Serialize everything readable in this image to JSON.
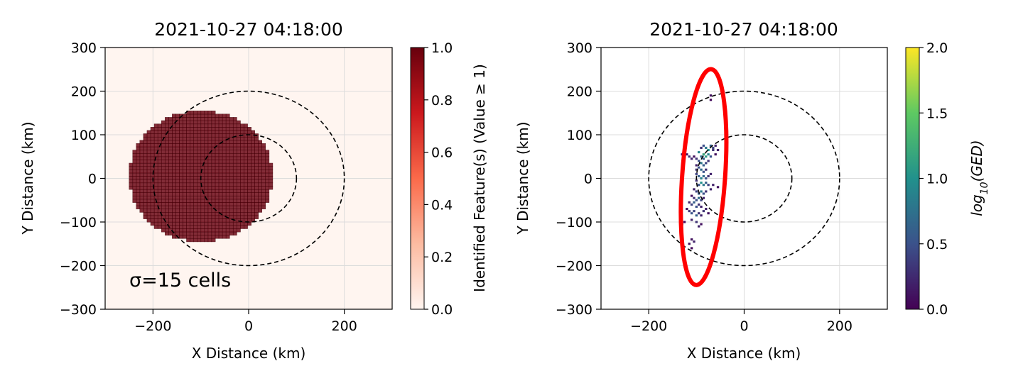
{
  "chart_data": [
    {
      "type": "heatmap",
      "title": "2021-10-27 04:18:00",
      "xlabel": "X Distance (km)",
      "ylabel": "Y Distance (km)",
      "xlim": [
        -300,
        300
      ],
      "ylim": [
        -300,
        300
      ],
      "xticks": [
        -200,
        0,
        200
      ],
      "yticks": [
        -300,
        -200,
        -100,
        0,
        100,
        200,
        300
      ],
      "grid": true,
      "annotation": "σ=15 cells",
      "feature_region": {
        "description": "Identified feature: disc of value 1.0",
        "center": [
          -100,
          5
        ],
        "radius": 150
      },
      "rings": [
        {
          "center": [
            0,
            0
          ],
          "radius": 100,
          "style": "dashed"
        },
        {
          "center": [
            0,
            0
          ],
          "radius": 200,
          "style": "dashed"
        }
      ],
      "colorbar": {
        "label": "Identified Feature(s) (Value ≥ 1)",
        "range": [
          0,
          1
        ],
        "ticks": [
          0.0,
          0.2,
          0.4,
          0.6,
          0.8,
          1.0
        ],
        "colormap": "Reds",
        "colors": [
          "#fff5f0",
          "#fcbba1",
          "#fb6a4a",
          "#cb181d",
          "#67000d"
        ]
      }
    },
    {
      "type": "heatmap",
      "title": "2021-10-27 04:18:00",
      "xlabel": "X Distance (km)",
      "ylabel": "Y Distance (km)",
      "xlim": [
        -300,
        300
      ],
      "ylim": [
        -300,
        300
      ],
      "xticks": [
        -200,
        0,
        200
      ],
      "yticks": [
        -300,
        -200,
        -100,
        0,
        100,
        200,
        300
      ],
      "grid": true,
      "rings": [
        {
          "center": [
            0,
            0
          ],
          "radius": 100,
          "style": "dashed"
        },
        {
          "center": [
            0,
            0
          ],
          "radius": 200,
          "style": "dashed"
        }
      ],
      "highlight_ellipse": {
        "center": [
          -85,
          3
        ],
        "semi_axes": [
          45,
          248
        ],
        "tilt_deg": 4,
        "color": "#ff0000"
      },
      "cells": [
        [
          -70,
          190,
          0.1
        ],
        [
          -70,
          180,
          0.05
        ],
        [
          -90,
          70,
          0.3
        ],
        [
          -85,
          75,
          0.5
        ],
        [
          -80,
          70,
          0.8
        ],
        [
          -75,
          65,
          1.0
        ],
        [
          -70,
          75,
          0.6
        ],
        [
          -65,
          70,
          0.4
        ],
        [
          -60,
          75,
          0.2
        ],
        [
          -65,
          65,
          0.3
        ],
        [
          -55,
          65,
          0.2
        ],
        [
          -60,
          55,
          0.1
        ],
        [
          -130,
          55,
          0.1
        ],
        [
          -125,
          50,
          0.2
        ],
        [
          -120,
          55,
          0.1
        ],
        [
          -115,
          50,
          0.3
        ],
        [
          -110,
          45,
          0.2
        ],
        [
          -105,
          50,
          0.1
        ],
        [
          -95,
          60,
          0.9
        ],
        [
          -85,
          55,
          1.2
        ],
        [
          -80,
          50,
          1.1
        ],
        [
          -75,
          55,
          0.9
        ],
        [
          -70,
          50,
          0.5
        ],
        [
          -90,
          50,
          0.7
        ],
        [
          -85,
          45,
          0.6
        ],
        [
          -100,
          45,
          0.3
        ],
        [
          -95,
          40,
          0.5
        ],
        [
          -90,
          35,
          0.8
        ],
        [
          -85,
          30,
          0.6
        ],
        [
          -80,
          35,
          0.4
        ],
        [
          -75,
          40,
          0.3
        ],
        [
          -100,
          30,
          0.2
        ],
        [
          -100,
          20,
          0.3
        ],
        [
          -95,
          25,
          0.5
        ],
        [
          -90,
          20,
          0.7
        ],
        [
          -85,
          15,
          0.5
        ],
        [
          -80,
          20,
          0.3
        ],
        [
          -100,
          10,
          0.4
        ],
        [
          -95,
          5,
          0.6
        ],
        [
          -90,
          0,
          0.9
        ],
        [
          -85,
          5,
          0.7
        ],
        [
          -80,
          0,
          0.5
        ],
        [
          -75,
          5,
          0.3
        ],
        [
          -70,
          10,
          0.2
        ],
        [
          -100,
          -5,
          0.3
        ],
        [
          -95,
          -15,
          0.5
        ],
        [
          -90,
          -10,
          1.0
        ],
        [
          -85,
          -15,
          0.8
        ],
        [
          -80,
          -10,
          0.6
        ],
        [
          -75,
          -15,
          0.4
        ],
        [
          -65,
          -15,
          0.2
        ],
        [
          -55,
          -20,
          0.1
        ],
        [
          -105,
          -25,
          0.2
        ],
        [
          -100,
          -30,
          0.4
        ],
        [
          -95,
          -35,
          0.6
        ],
        [
          -90,
          -30,
          0.8
        ],
        [
          -85,
          -35,
          0.5
        ],
        [
          -80,
          -30,
          0.3
        ],
        [
          -70,
          -25,
          0.2
        ],
        [
          -110,
          -40,
          0.1
        ],
        [
          -105,
          -45,
          0.3
        ],
        [
          -100,
          -50,
          0.5
        ],
        [
          -95,
          -45,
          0.7
        ],
        [
          -90,
          -50,
          0.4
        ],
        [
          -85,
          -45,
          0.2
        ],
        [
          -115,
          -55,
          0.2
        ],
        [
          -110,
          -60,
          0.4
        ],
        [
          -105,
          -55,
          0.6
        ],
        [
          -100,
          -65,
          0.5
        ],
        [
          -95,
          -60,
          0.3
        ],
        [
          -90,
          -65,
          0.2
        ],
        [
          -120,
          -70,
          0.1
        ],
        [
          -115,
          -75,
          0.3
        ],
        [
          -110,
          -80,
          0.5
        ],
        [
          -105,
          -75,
          0.4
        ],
        [
          -100,
          -85,
          0.6
        ],
        [
          -95,
          -80,
          0.3
        ],
        [
          -90,
          -85,
          0.2
        ],
        [
          -85,
          -75,
          0.3
        ],
        [
          -80,
          -70,
          0.2
        ],
        [
          -75,
          -80,
          0.1
        ],
        [
          -110,
          -95,
          0.2
        ],
        [
          -100,
          -100,
          0.3
        ],
        [
          -95,
          -110,
          0.2
        ],
        [
          -90,
          -105,
          0.1
        ],
        [
          -130,
          -105,
          0.1
        ],
        [
          -125,
          -100,
          0.05
        ],
        [
          -110,
          -140,
          0.1
        ],
        [
          -105,
          -145,
          0.2
        ],
        [
          -115,
          -150,
          0.1
        ],
        [
          -110,
          -160,
          0.05
        ]
      ],
      "colorbar": {
        "label": "log10(GED)",
        "range": [
          0,
          2
        ],
        "ticks": [
          0.0,
          0.5,
          1.0,
          1.5,
          2.0
        ],
        "colormap": "viridis",
        "colors": [
          "#440154",
          "#3b528b",
          "#21918c",
          "#5ec962",
          "#fde725"
        ]
      }
    }
  ]
}
